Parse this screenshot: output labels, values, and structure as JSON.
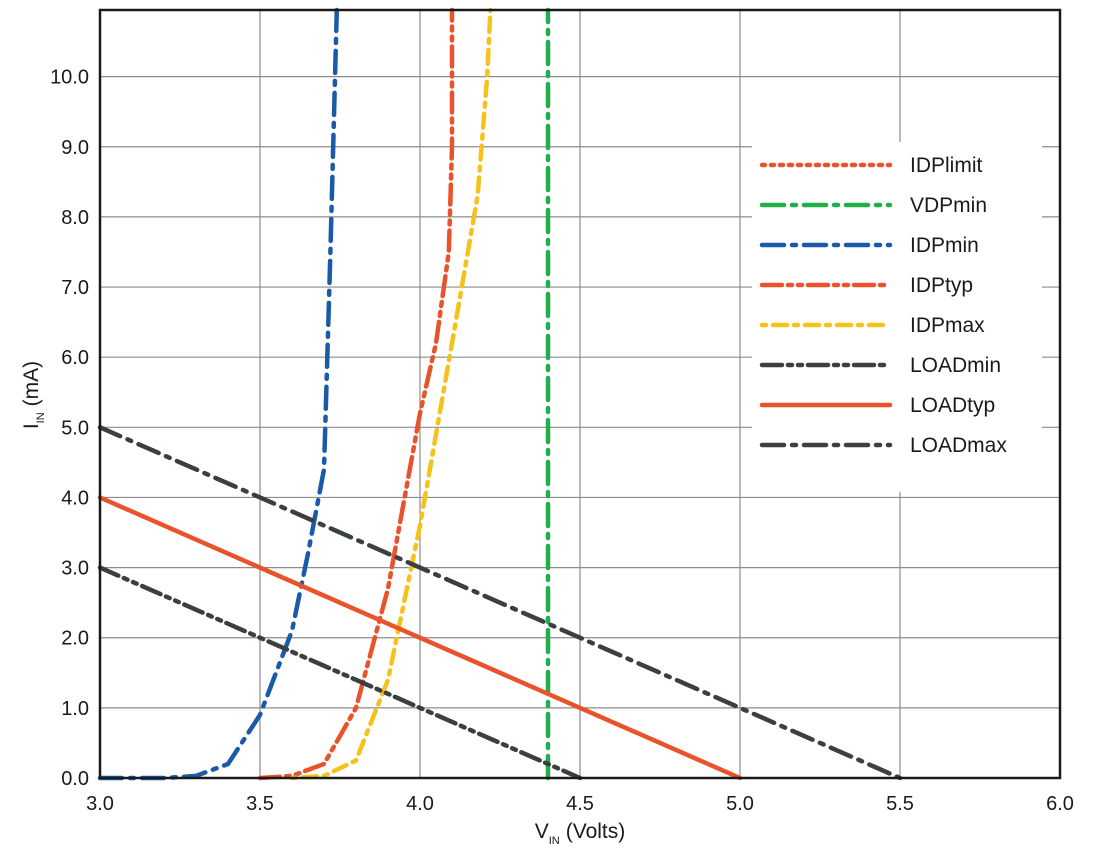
{
  "chart_data": {
    "type": "line",
    "title": "",
    "xlabel": {
      "main": "V",
      "sub": "IN",
      "unit": "(Volts)"
    },
    "ylabel": {
      "main": "I",
      "sub": "IN",
      "unit": "(mA)"
    },
    "xlim": [
      3.0,
      6.0
    ],
    "ylim": [
      0.0,
      10.95
    ],
    "xticks": [
      "3.0",
      "3.5",
      "4.0",
      "4.5",
      "5.0",
      "5.5",
      "6.0"
    ],
    "xtick_values": [
      3.0,
      3.5,
      4.0,
      4.5,
      5.0,
      5.5,
      6.0
    ],
    "yticks": [
      "0.0",
      "1.0",
      "2.0",
      "3.0",
      "4.0",
      "5.0",
      "6.0",
      "7.0",
      "8.0",
      "9.0",
      "10.0"
    ],
    "ytick_values": [
      0,
      1,
      2,
      3,
      4,
      5,
      6,
      7,
      8,
      9,
      10
    ],
    "grid": true,
    "legend_position": "right",
    "series": [
      {
        "name": "IDPlimit",
        "color": "#e8532b",
        "dash": "dotted",
        "x": [],
        "y": []
      },
      {
        "name": "VDPmin",
        "color": "#1fb04b",
        "dash": "dashdot",
        "x": [
          4.4,
          4.4
        ],
        "y": [
          0,
          10.95
        ]
      },
      {
        "name": "IDPmin",
        "color": "#1a5aa8",
        "dash": "dashdot",
        "x": [
          3.0,
          3.1,
          3.2,
          3.3,
          3.4,
          3.5,
          3.6,
          3.65,
          3.7,
          3.72,
          3.74
        ],
        "y": [
          0.0,
          0.0,
          0.0,
          0.03,
          0.2,
          0.9,
          2.1,
          3.2,
          4.4,
          7.5,
          10.95
        ]
      },
      {
        "name": "IDPtyp",
        "color": "#e8532b",
        "dash": "dashdotdot",
        "x": [
          3.5,
          3.6,
          3.7,
          3.8,
          3.9,
          4.0,
          4.05,
          4.09,
          4.1,
          4.1
        ],
        "y": [
          0.0,
          0.03,
          0.2,
          1.0,
          2.7,
          5.2,
          6.2,
          7.5,
          9.0,
          10.95
        ]
      },
      {
        "name": "IDPmax",
        "color": "#f5c21b",
        "dash": "dotdash",
        "x": [
          3.6,
          3.7,
          3.8,
          3.9,
          4.0,
          4.1,
          4.18,
          4.21,
          4.22
        ],
        "y": [
          0.0,
          0.03,
          0.25,
          1.4,
          3.6,
          6.2,
          8.3,
          10.0,
          10.95
        ]
      },
      {
        "name": "LOADmin",
        "color": "#3a3f3f",
        "dash": "dashdotdot",
        "x": [
          3.0,
          4.5
        ],
        "y": [
          3.0,
          0.0
        ]
      },
      {
        "name": "LOADtyp",
        "color": "#e8532b",
        "dash": "solid",
        "x": [
          3.0,
          5.0
        ],
        "y": [
          4.0,
          0.0
        ]
      },
      {
        "name": "LOADmax",
        "color": "#3a3f3f",
        "dash": "dashdot",
        "x": [
          3.0,
          5.5
        ],
        "y": [
          5.0,
          0.0
        ]
      }
    ]
  }
}
